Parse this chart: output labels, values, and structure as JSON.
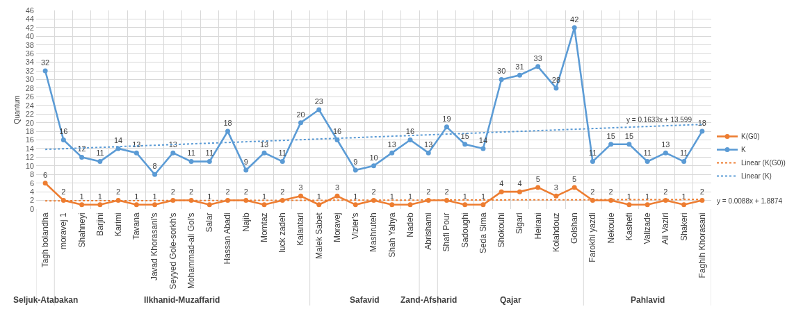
{
  "chart_data": {
    "type": "line",
    "ylabel": "Quantum",
    "categories": [
      "Tagh bolandha",
      "moravej 1",
      "Shahneyi",
      "Barjini",
      "Karimi",
      "Tavana",
      "Javad Khorasani's",
      "Seyyed Gole-sorkh's",
      "Mohammad-ali Gol's",
      "Salar",
      "Hassan Abadi",
      "Najib",
      "Momtaz",
      "luck zadeh",
      "Kalantari",
      "Malek Sabet",
      "Moravej",
      "Vizier's",
      "Mashruteh",
      "Shah Yahya",
      "Nadeb",
      "Abrishami",
      "Shafi Pour",
      "Sadoughi",
      "Seda Sima",
      "Shokouhi",
      "Sigari",
      "Heirani",
      "Kolahdouz",
      "Golshan",
      "Farokhi yazdi",
      "Nekouie",
      "Kashefi",
      "Valizade",
      "Ali Vaziri",
      "Shakeri",
      "Faghih Khorasani"
    ],
    "series": [
      {
        "name": "K(G0)",
        "color": "#ed7d31",
        "values": [
          6,
          2,
          1,
          1,
          2,
          1,
          1,
          2,
          2,
          1,
          2,
          2,
          1,
          2,
          3,
          1,
          3,
          1,
          2,
          1,
          1,
          2,
          2,
          1,
          1,
          4,
          4,
          5,
          3,
          5,
          2,
          2,
          1,
          1,
          2,
          1,
          2
        ],
        "value_labels": [
          "6",
          "2",
          "1",
          "1",
          "2",
          "1",
          "1",
          "2",
          "2",
          "1",
          "2",
          "2",
          "1",
          "2",
          "3",
          "1",
          "3",
          "1",
          "2",
          "1",
          "1",
          "2",
          "2",
          "1",
          "1",
          "4",
          "4",
          "5",
          "3",
          "5",
          "2",
          "2",
          "1",
          "1",
          "2",
          "1",
          "2"
        ]
      },
      {
        "name": "K",
        "color": "#5b9bd5",
        "values": [
          32,
          16,
          12,
          11,
          14,
          13,
          8,
          13,
          11,
          11,
          18,
          9,
          13,
          11,
          20,
          23,
          16,
          9,
          10,
          13,
          16,
          13,
          19,
          15,
          14,
          30,
          31,
          33,
          28,
          42,
          11,
          15,
          15,
          11,
          13,
          11,
          18
        ],
        "value_labels": [
          "32",
          "16",
          "12",
          "11",
          "14",
          "13",
          "8",
          "13",
          "11",
          "11",
          "18",
          "9",
          "13",
          "11",
          "20",
          "23",
          "16",
          "9",
          "10",
          "13",
          "16",
          "13",
          "19",
          "15",
          "14",
          "30",
          "31",
          "33",
          "28",
          "42",
          "11",
          "15",
          "15",
          "11",
          "13",
          "11",
          "18"
        ]
      },
      {
        "name": "Linear (K(G0))",
        "color": "#ed7d31",
        "x": [
          "Tagh bolandha",
          "Faghih Khorasani"
        ],
        "values": [
          1.9,
          2.2
        ],
        "line_style": "dotted",
        "marker": "none"
      },
      {
        "name": "Linear (K)",
        "color": "#5b9bd5",
        "x": [
          "Tagh bolandha",
          "Faghih Khorasani"
        ],
        "values": [
          13.8,
          19.6
        ],
        "line_style": "dotted",
        "marker": "none"
      }
    ],
    "ylim": [
      0,
      46
    ],
    "yticks": [
      0,
      2,
      4,
      6,
      8,
      10,
      12,
      14,
      16,
      18,
      20,
      22,
      24,
      26,
      28,
      30,
      32,
      34,
      36,
      38,
      40,
      42,
      44,
      46
    ],
    "annotations": [
      "y = 0.1633x + 13.599",
      "y = 0.0088x + 1.8874",
      "Seljuk-Atabakan",
      "Ilkhanid-Muzaffarid",
      "Safavid",
      "Zand-Afsharid",
      "Qajar",
      "Pahlavid"
    ],
    "marker": "circle",
    "line_style": "solid",
    "grid": true,
    "legend": "right"
  }
}
